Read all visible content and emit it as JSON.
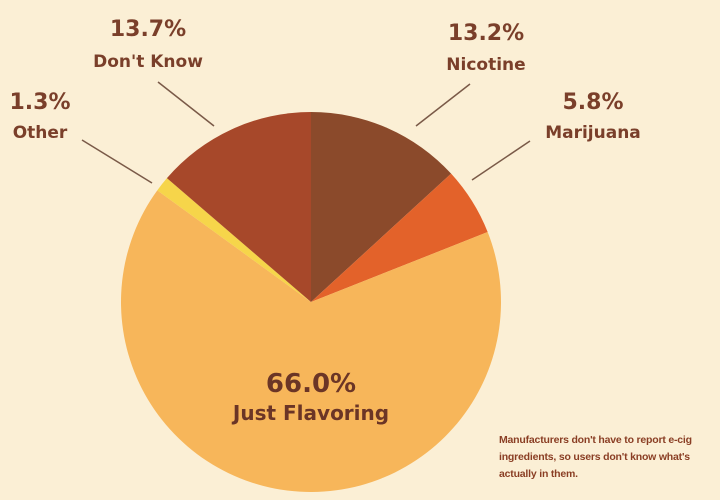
{
  "chart_data": {
    "type": "pie",
    "title": "",
    "slices": [
      {
        "label": "Nicotine",
        "value": 13.2,
        "display": "13.2%",
        "color": "#8b4a2b"
      },
      {
        "label": "Marijuana",
        "value": 5.8,
        "display": "5.8%",
        "color": "#e3622a"
      },
      {
        "label": "Just Flavoring",
        "value": 66.0,
        "display": "66.0%",
        "color": "#f7b65a"
      },
      {
        "label": "Other",
        "value": 1.3,
        "display": "1.3%",
        "color": "#f6d54a"
      },
      {
        "label": "Don't Know",
        "value": 13.7,
        "display": "13.7%",
        "color": "#a7482a"
      }
    ],
    "start": "12 o'clock",
    "direction": "clockwise"
  },
  "colors": {
    "background": "#fbefd5",
    "label_text": "#7a3f2a",
    "center_label_text": "#6b3526",
    "leader_line": "#7a5a48",
    "note_text": "#8a3e24"
  },
  "note": {
    "text": "Manufacturers don't have to report e-cig ingredients, so users don't know what's actually in them."
  }
}
